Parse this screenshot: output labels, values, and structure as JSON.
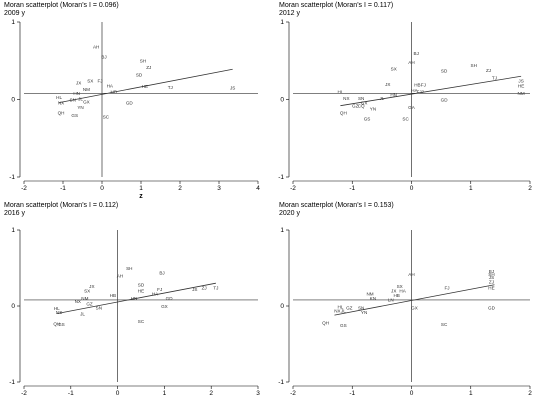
{
  "chart_data": [
    {
      "type": "scatter",
      "title": "Moran scatterplot (Moran's I = 0.096)",
      "subtitle": "2009 y",
      "xlabel": "z",
      "ylabel": "",
      "xlim": [
        -2,
        4
      ],
      "ylim": [
        -1,
        1
      ],
      "xticks": [
        "-2",
        "-1",
        "0",
        "1",
        "2",
        "3",
        "4"
      ],
      "yticks": [
        "-1",
        "0",
        "1"
      ],
      "x_tick_values": [
        -2,
        -1,
        0,
        1,
        2,
        3,
        4
      ],
      "y_tick_values": [
        -1,
        0,
        1
      ],
      "hline": 0.08,
      "vline": 0,
      "fit_line": {
        "x": [
          -1.1,
          3.35
        ],
        "y": [
          -0.04,
          0.39
        ]
      },
      "points": [
        {
          "label": "AH",
          "x": -0.15,
          "y": 0.68
        },
        {
          "label": "BJ",
          "x": 0.05,
          "y": 0.55
        },
        {
          "label": "SH",
          "x": 1.05,
          "y": 0.5
        },
        {
          "label": "ZJ",
          "x": 1.2,
          "y": 0.42
        },
        {
          "label": "SD",
          "x": 0.95,
          "y": 0.32
        },
        {
          "label": "JX",
          "x": -0.6,
          "y": 0.22
        },
        {
          "label": "SX",
          "x": -0.3,
          "y": 0.24
        },
        {
          "label": "FJ",
          "x": -0.05,
          "y": 0.24
        },
        {
          "label": "HA",
          "x": 0.2,
          "y": 0.18
        },
        {
          "label": "NM",
          "x": -0.4,
          "y": 0.13
        },
        {
          "label": "HN",
          "x": -0.65,
          "y": 0.08
        },
        {
          "label": "HB",
          "x": 0.3,
          "y": 0.1
        },
        {
          "label": "HE",
          "x": 1.1,
          "y": 0.17
        },
        {
          "label": "TJ",
          "x": 1.75,
          "y": 0.16
        },
        {
          "label": "JS",
          "x": 3.35,
          "y": 0.15
        },
        {
          "label": "HL",
          "x": -1.1,
          "y": 0.03
        },
        {
          "label": "SN",
          "x": -0.75,
          "y": 0.0
        },
        {
          "label": "JL",
          "x": -0.55,
          "y": 0.01
        },
        {
          "label": "GX",
          "x": -0.4,
          "y": -0.03
        },
        {
          "label": "NX",
          "x": -1.05,
          "y": -0.04
        },
        {
          "label": "YN",
          "x": -0.55,
          "y": -0.1
        },
        {
          "label": "QH",
          "x": -1.05,
          "y": -0.17
        },
        {
          "label": "GS",
          "x": -0.7,
          "y": -0.2
        },
        {
          "label": "GD",
          "x": 0.7,
          "y": -0.04
        },
        {
          "label": "SC",
          "x": 0.1,
          "y": -0.22
        }
      ]
    },
    {
      "type": "scatter",
      "title": "Moran scatterplot (Moran's I = 0.117)",
      "subtitle": "2012 y",
      "xlabel": "",
      "ylabel": "",
      "xlim": [
        -2,
        2
      ],
      "ylim": [
        -1,
        1
      ],
      "xticks": [
        "-2",
        "-1",
        "0",
        "1",
        "2"
      ],
      "yticks": [
        "-1",
        "0",
        "1"
      ],
      "x_tick_values": [
        -2,
        -1,
        0,
        1,
        2
      ],
      "y_tick_values": [
        -1,
        0,
        1
      ],
      "hline": 0.08,
      "vline": 0,
      "fit_line": {
        "x": [
          -1.2,
          1.85
        ],
        "y": [
          -0.08,
          0.3
        ]
      },
      "points": [
        {
          "label": "BJ",
          "x": 0.08,
          "y": 0.6
        },
        {
          "label": "AH",
          "x": 0.0,
          "y": 0.48
        },
        {
          "label": "SX",
          "x": -0.3,
          "y": 0.4
        },
        {
          "label": "SH",
          "x": 1.05,
          "y": 0.44
        },
        {
          "label": "ZJ",
          "x": 1.3,
          "y": 0.38
        },
        {
          "label": "SD",
          "x": 0.55,
          "y": 0.37
        },
        {
          "label": "TJ",
          "x": 1.4,
          "y": 0.28
        },
        {
          "label": "JS",
          "x": 1.85,
          "y": 0.24
        },
        {
          "label": "HE",
          "x": 1.85,
          "y": 0.18
        },
        {
          "label": "NM",
          "x": 1.85,
          "y": 0.08
        },
        {
          "label": "JX",
          "x": -0.4,
          "y": 0.2
        },
        {
          "label": "HB",
          "x": 0.1,
          "y": 0.19
        },
        {
          "label": "FJ",
          "x": 0.2,
          "y": 0.19
        },
        {
          "label": "FJ2",
          "x": 0.15,
          "y": 0.1
        },
        {
          "label": "HA",
          "x": 0.05,
          "y": 0.12
        },
        {
          "label": "HL",
          "x": -1.2,
          "y": 0.1
        },
        {
          "label": "HN",
          "x": -0.3,
          "y": 0.06
        },
        {
          "label": "JL",
          "x": -0.5,
          "y": 0.02
        },
        {
          "label": "NX",
          "x": -1.1,
          "y": 0.02
        },
        {
          "label": "SN",
          "x": -0.85,
          "y": 0.02
        },
        {
          "label": "GX",
          "x": -0.8,
          "y": -0.04
        },
        {
          "label": "GZ",
          "x": -0.95,
          "y": -0.08
        },
        {
          "label": "CQ",
          "x": -0.85,
          "y": -0.08
        },
        {
          "label": "YN",
          "x": -0.65,
          "y": -0.12
        },
        {
          "label": "GA",
          "x": 0.0,
          "y": -0.1
        },
        {
          "label": "GD",
          "x": 0.55,
          "y": 0.0
        },
        {
          "label": "QH",
          "x": -1.15,
          "y": -0.17
        },
        {
          "label": "GS",
          "x": -0.75,
          "y": -0.25
        },
        {
          "label": "SC",
          "x": -0.1,
          "y": -0.25
        }
      ]
    },
    {
      "type": "scatter",
      "title": "Moran scatterplot (Moran's I = 0.112)",
      "subtitle": "2016 y",
      "xlabel": "",
      "ylabel": "",
      "xlim": [
        -2,
        3
      ],
      "ylim": [
        -1,
        1
      ],
      "xticks": [
        "-2",
        "-1",
        "0",
        "1",
        "2",
        "3"
      ],
      "yticks": [
        "-1",
        "0",
        "1"
      ],
      "x_tick_values": [
        -2,
        -1,
        0,
        1,
        2,
        3
      ],
      "y_tick_values": [
        -1,
        0,
        1
      ],
      "hline": 0.08,
      "vline": 0,
      "fit_line": {
        "x": [
          -1.3,
          2.1
        ],
        "y": [
          -0.1,
          0.3
        ]
      },
      "points": [
        {
          "label": "SH",
          "x": 0.25,
          "y": 0.5
        },
        {
          "label": "BJ",
          "x": 0.95,
          "y": 0.44
        },
        {
          "label": "AH",
          "x": 0.05,
          "y": 0.4
        },
        {
          "label": "SD",
          "x": 0.5,
          "y": 0.28
        },
        {
          "label": "JX",
          "x": -0.55,
          "y": 0.26
        },
        {
          "label": "SX",
          "x": -0.65,
          "y": 0.2
        },
        {
          "label": "HE",
          "x": 0.5,
          "y": 0.2
        },
        {
          "label": "FJ",
          "x": 0.9,
          "y": 0.22
        },
        {
          "label": "HA",
          "x": 0.8,
          "y": 0.16
        },
        {
          "label": "JS",
          "x": 1.65,
          "y": 0.22
        },
        {
          "label": "ZJ",
          "x": 1.85,
          "y": 0.24
        },
        {
          "label": "TJ",
          "x": 2.1,
          "y": 0.24
        },
        {
          "label": "GD",
          "x": 1.1,
          "y": 0.1
        },
        {
          "label": "HB",
          "x": -0.1,
          "y": 0.14
        },
        {
          "label": "HN",
          "x": 0.35,
          "y": 0.1
        },
        {
          "label": "NM",
          "x": -0.7,
          "y": 0.1
        },
        {
          "label": "NX",
          "x": -0.85,
          "y": 0.06
        },
        {
          "label": "GZ",
          "x": -0.6,
          "y": 0.03
        },
        {
          "label": "SN",
          "x": -0.4,
          "y": -0.02
        },
        {
          "label": "HL",
          "x": -1.3,
          "y": -0.03
        },
        {
          "label": "NS",
          "x": -1.25,
          "y": -0.08
        },
        {
          "label": "JL",
          "x": -0.75,
          "y": -0.1
        },
        {
          "label": "GX",
          "x": 1.0,
          "y": 0.0
        },
        {
          "label": "QH",
          "x": -1.3,
          "y": -0.23
        },
        {
          "label": "GS",
          "x": -1.2,
          "y": -0.24
        },
        {
          "label": "SC",
          "x": 0.5,
          "y": -0.2
        }
      ]
    },
    {
      "type": "scatter",
      "title": "Moran scatterplot (Moran's I = 0.153)",
      "subtitle": "2020 y",
      "xlabel": "",
      "ylabel": "",
      "xlim": [
        -2,
        2
      ],
      "ylim": [
        -1,
        1
      ],
      "xticks": [
        "-2",
        "-1",
        "0",
        "1",
        "2"
      ],
      "yticks": [
        "-1",
        "0",
        "1"
      ],
      "x_tick_values": [
        -2,
        -1,
        0,
        1,
        2
      ],
      "y_tick_values": [
        -1,
        0,
        1
      ],
      "hline": 0.08,
      "vline": 0,
      "fit_line": {
        "x": [
          -1.3,
          1.4
        ],
        "y": [
          -0.12,
          0.28
        ]
      },
      "points": [
        {
          "label": "AH",
          "x": 0.0,
          "y": 0.42
        },
        {
          "label": "BJ",
          "x": 1.35,
          "y": 0.46
        },
        {
          "label": "SH",
          "x": 1.35,
          "y": 0.42
        },
        {
          "label": "JS",
          "x": 1.35,
          "y": 0.38
        },
        {
          "label": "ZJ",
          "x": 1.35,
          "y": 0.32
        },
        {
          "label": "HE",
          "x": 1.35,
          "y": 0.24
        },
        {
          "label": "SX",
          "x": -0.2,
          "y": 0.26
        },
        {
          "label": "JX",
          "x": -0.3,
          "y": 0.2
        },
        {
          "label": "HA",
          "x": -0.15,
          "y": 0.2
        },
        {
          "label": "FJ",
          "x": 0.6,
          "y": 0.24
        },
        {
          "label": "NM",
          "x": -0.7,
          "y": 0.16
        },
        {
          "label": "HB",
          "x": -0.25,
          "y": 0.14
        },
        {
          "label": "KN",
          "x": -0.65,
          "y": 0.1
        },
        {
          "label": "LN",
          "x": -0.35,
          "y": 0.08
        },
        {
          "label": "SN",
          "x": -0.85,
          "y": -0.02
        },
        {
          "label": "YN",
          "x": -0.8,
          "y": -0.08
        },
        {
          "label": "GX",
          "x": 0.05,
          "y": -0.02
        },
        {
          "label": "GD",
          "x": 1.35,
          "y": -0.02
        },
        {
          "label": "HL",
          "x": -1.2,
          "y": -0.01
        },
        {
          "label": "GZ",
          "x": -1.05,
          "y": -0.02
        },
        {
          "label": "NX",
          "x": -1.25,
          "y": -0.06
        },
        {
          "label": "JL",
          "x": -1.15,
          "y": -0.06
        },
        {
          "label": "QH",
          "x": -1.45,
          "y": -0.22
        },
        {
          "label": "GS",
          "x": -1.15,
          "y": -0.25
        },
        {
          "label": "SC",
          "x": 0.55,
          "y": -0.24
        }
      ]
    }
  ]
}
